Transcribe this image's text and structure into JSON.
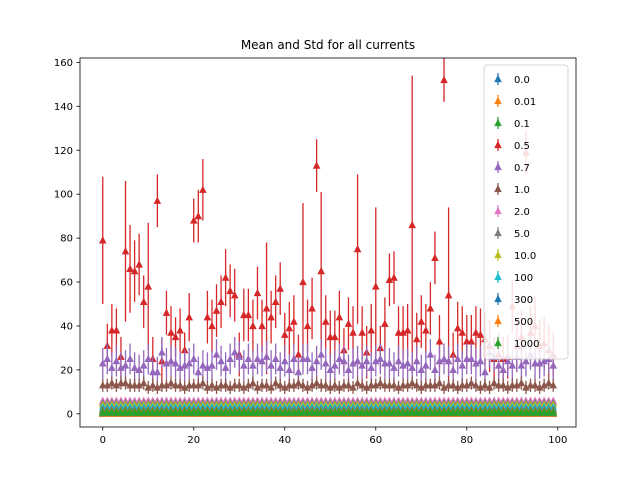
{
  "chart_data": {
    "type": "scatter",
    "title": "Mean and Std for all currents",
    "xlabel": "",
    "ylabel": "",
    "xlim": [
      -5,
      104
    ],
    "ylim": [
      -6,
      162
    ],
    "xticks": [
      0,
      20,
      40,
      60,
      80,
      100
    ],
    "yticks": [
      0,
      20,
      40,
      60,
      80,
      100,
      120,
      140,
      160
    ],
    "x_count": 100,
    "marker": "triangle-up",
    "errorbars": true,
    "legend_position": "upper right",
    "series": [
      {
        "name": "0.0",
        "color": "#1f77b4",
        "mean": 0,
        "std": 0
      },
      {
        "name": "0.01",
        "color": "#ff7f0e",
        "mean": 0.1,
        "std": 0.2
      },
      {
        "name": "0.1",
        "color": "#2ca02c",
        "mean": 0.5,
        "std": 0.5
      },
      {
        "name": "0.5",
        "color": "#d62728",
        "values": [
          79,
          31,
          38,
          38,
          26,
          74,
          66,
          65,
          68,
          51,
          58,
          25,
          97,
          24,
          46,
          37,
          35,
          38,
          29,
          44,
          88,
          90,
          102,
          44,
          40,
          47,
          51,
          62,
          56,
          54,
          27,
          45,
          45,
          40,
          55,
          40,
          48,
          44,
          51,
          57,
          36,
          39,
          42,
          27,
          60,
          40,
          48,
          113,
          65,
          42,
          35,
          35,
          44,
          29,
          41,
          37,
          75,
          37,
          28,
          38,
          58,
          30,
          41,
          61,
          62,
          37,
          37,
          38,
          86,
          34,
          42,
          38,
          48,
          71,
          33,
          152,
          54,
          27,
          39,
          37,
          33,
          33,
          37,
          36,
          34,
          31,
          25,
          27,
          25,
          26,
          49,
          31,
          35,
          119,
          37,
          40,
          31,
          32,
          29,
          27
        ],
        "std": [
          29,
          10,
          12,
          10,
          9,
          32,
          20,
          14,
          14,
          12,
          29,
          10,
          12,
          10,
          10,
          12,
          9,
          10,
          8,
          11,
          10,
          12,
          14,
          12,
          12,
          12,
          12,
          13,
          12,
          12,
          10,
          12,
          12,
          12,
          12,
          12,
          30,
          12,
          12,
          12,
          10,
          12,
          12,
          9,
          36,
          12,
          14,
          12,
          36,
          12,
          12,
          12,
          12,
          10,
          12,
          12,
          34,
          12,
          12,
          12,
          36,
          10,
          12,
          12,
          12,
          12,
          12,
          12,
          68,
          12,
          12,
          12,
          12,
          12,
          12,
          10,
          40,
          10,
          12,
          12,
          12,
          12,
          12,
          12,
          12,
          12,
          10,
          10,
          10,
          10,
          12,
          12,
          12,
          10,
          12,
          14,
          12,
          12,
          12,
          10
        ]
      },
      {
        "name": "0.7",
        "color": "#9467bd",
        "values": [
          23,
          25,
          21,
          24,
          21,
          22,
          25,
          21,
          20,
          22,
          25,
          19,
          19,
          28,
          23,
          24,
          23,
          21,
          22,
          23,
          25,
          19,
          22,
          21,
          22,
          27,
          24,
          21,
          25,
          28,
          26,
          22,
          25,
          22,
          25,
          24,
          26,
          22,
          25,
          21,
          24,
          20,
          25,
          19,
          25,
          25,
          21,
          24,
          27,
          23,
          20,
          22,
          25,
          24,
          20,
          23,
          24,
          22,
          24,
          21,
          24,
          25,
          23,
          23,
          21,
          24,
          22,
          23,
          21,
          24,
          20,
          22,
          27,
          20,
          24,
          25,
          24,
          20,
          25,
          22,
          25,
          25,
          23,
          24,
          19,
          28,
          26,
          22,
          20,
          24,
          22,
          26,
          22,
          24,
          27,
          23,
          23,
          24,
          25,
          22
        ],
        "std": 7
      },
      {
        "name": "1.0",
        "color": "#8c564b",
        "values": [
          13,
          13,
          14,
          13,
          14,
          14,
          13,
          13,
          13,
          14,
          12,
          13,
          12,
          13,
          13,
          14,
          13,
          13,
          12,
          13,
          13,
          13,
          14,
          12,
          13,
          12,
          13,
          13,
          12,
          13,
          13,
          12,
          13,
          14,
          12,
          13,
          13,
          12,
          14,
          13,
          12,
          13,
          13,
          14,
          13,
          12,
          13,
          14,
          13,
          13,
          12,
          13,
          12,
          13,
          13,
          12,
          14,
          13,
          12,
          13,
          13,
          14,
          13,
          13,
          13,
          12,
          13,
          13,
          14,
          13,
          12,
          13,
          13,
          13,
          14,
          12,
          13,
          13,
          12,
          13,
          13,
          14,
          13,
          12,
          13,
          12,
          14,
          13,
          13,
          12,
          13,
          13,
          14,
          12,
          13,
          13,
          12,
          13,
          14,
          13
        ],
        "std": 3
      },
      {
        "name": "2.0",
        "color": "#e377c2",
        "mean": 6,
        "std": 1.2
      },
      {
        "name": "5.0",
        "color": "#7f7f7f",
        "mean": 5,
        "std": 1
      },
      {
        "name": "10.0",
        "color": "#bcbd22",
        "mean": 4,
        "std": 1
      },
      {
        "name": "100",
        "color": "#17becf",
        "mean": 3,
        "std": 1
      },
      {
        "name": "300",
        "color": "#1f77b4",
        "mean": 2,
        "std": 0.8
      },
      {
        "name": "500",
        "color": "#ff7f0e",
        "mean": 1.5,
        "std": 0.6
      },
      {
        "name": "1000",
        "color": "#2ca02c",
        "mean": 1,
        "std": 0.5
      }
    ]
  }
}
